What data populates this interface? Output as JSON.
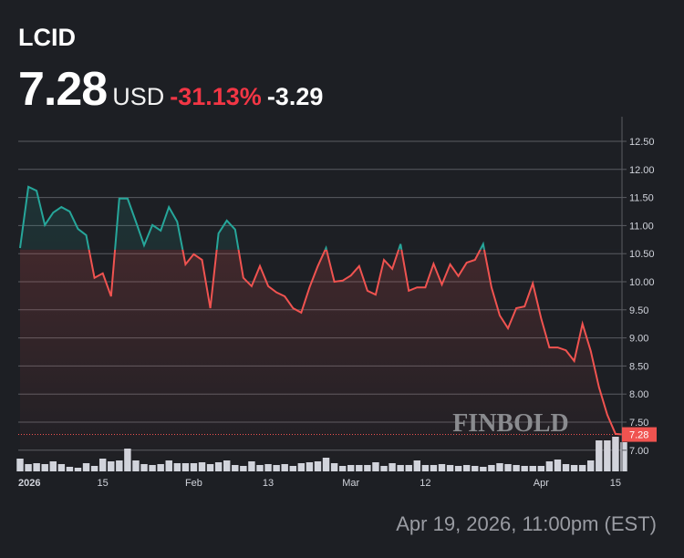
{
  "header": {
    "ticker": "LCID",
    "price": "7.28",
    "currency": "USD",
    "change_percent": "-31.13%",
    "change_abs": "-3.29"
  },
  "timestamp": "Apr 19, 2026, 11:00pm (EST)",
  "watermark": "FINBOLD",
  "colors": {
    "up": "#26a69a",
    "down": "#f05350",
    "grid": "#5a5c62",
    "volume": "#d1d4dc",
    "last_price_box": "#f05350"
  },
  "chart_data": {
    "type": "area",
    "title": "",
    "xlabel": "",
    "ylabel": "",
    "ylim": [
      6.6,
      12.75
    ],
    "y_ticks": [
      "12.50",
      "12.00",
      "11.50",
      "11.00",
      "10.50",
      "10.00",
      "9.50",
      "9.00",
      "8.50",
      "8.00",
      "7.50",
      "7.00"
    ],
    "x_ticks": [
      {
        "label": "2026",
        "index": 1
      },
      {
        "label": "15",
        "index": 10
      },
      {
        "label": "Feb",
        "index": 21
      },
      {
        "label": "13",
        "index": 30
      },
      {
        "label": "Mar",
        "index": 40
      },
      {
        "label": "12",
        "index": 49
      },
      {
        "label": "Apr",
        "index": 63
      },
      {
        "label": "15",
        "index": 72
      }
    ],
    "baseline": 10.57,
    "last_price_label": "7.28",
    "grid": true,
    "values": [
      10.6,
      11.69,
      11.62,
      11.01,
      11.23,
      11.33,
      11.25,
      10.94,
      10.83,
      10.07,
      10.15,
      9.74,
      11.48,
      11.48,
      11.07,
      10.65,
      11.01,
      10.91,
      11.33,
      11.07,
      10.31,
      10.49,
      10.39,
      9.53,
      10.86,
      11.09,
      10.93,
      10.07,
      9.92,
      10.28,
      9.92,
      9.81,
      9.74,
      9.53,
      9.45,
      9.9,
      10.28,
      10.6,
      10.0,
      10.02,
      10.11,
      10.28,
      9.84,
      9.77,
      10.39,
      10.23,
      10.67,
      9.84,
      9.9,
      9.9,
      10.32,
      9.95,
      10.31,
      10.1,
      10.34,
      10.39,
      10.67,
      9.9,
      9.4,
      9.17,
      9.53,
      9.56,
      9.97,
      9.35,
      8.83,
      8.83,
      8.78,
      8.59,
      9.25,
      8.77,
      8.12,
      7.63,
      7.29,
      7.28
    ],
    "volume_relative": [
      14,
      8,
      9,
      8,
      11,
      8,
      5,
      4,
      9,
      6,
      14,
      11,
      12,
      25,
      12,
      8,
      7,
      8,
      12,
      9,
      9,
      9,
      10,
      8,
      10,
      12,
      7,
      6,
      11,
      7,
      8,
      7,
      8,
      6,
      9,
      10,
      11,
      15,
      9,
      6,
      7,
      7,
      7,
      10,
      6,
      9,
      7,
      7,
      12,
      7,
      7,
      8,
      7,
      6,
      7,
      6,
      5,
      7,
      9,
      8,
      7,
      6,
      6,
      6,
      11,
      13,
      8,
      7,
      7,
      12,
      34,
      34,
      38,
      32
    ]
  }
}
